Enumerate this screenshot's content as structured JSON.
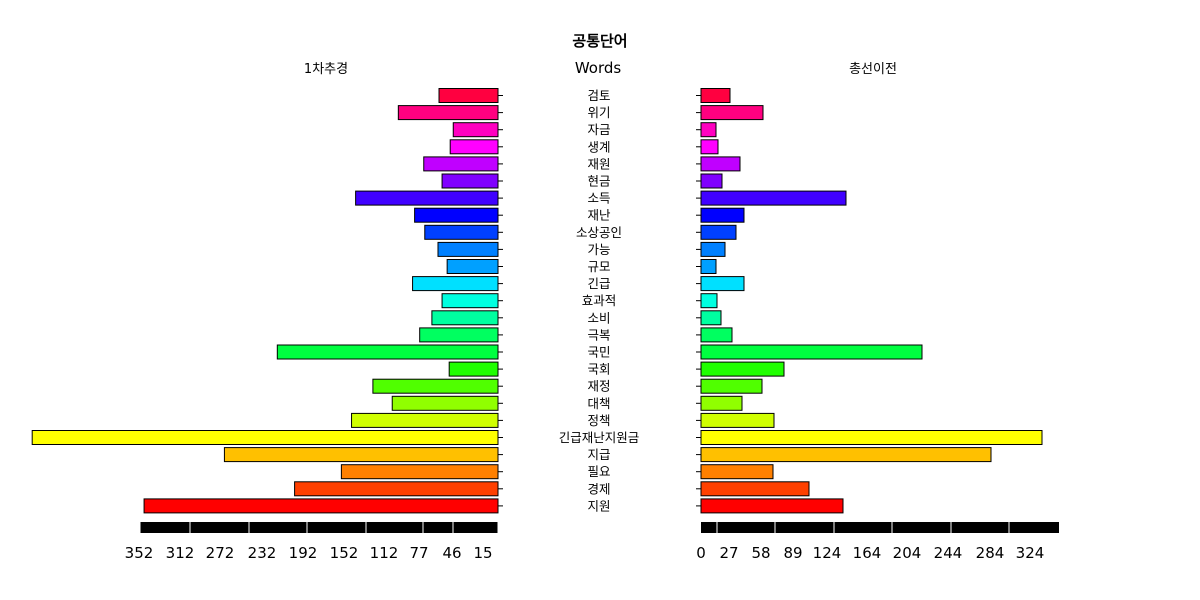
{
  "chart_data": {
    "type": "bar",
    "title": "공통단어",
    "left_title": "1차추경",
    "right_title": "총선이전",
    "center_title": "Words",
    "categories": [
      "검토",
      "위기",
      "자금",
      "생계",
      "재원",
      "현금",
      "소득",
      "재난",
      "소상공인",
      "가능",
      "규모",
      "긴급",
      "효과적",
      "소비",
      "극복",
      "국민",
      "국회",
      "재정",
      "대책",
      "정책",
      "긴급재난지원금",
      "지급",
      "필요",
      "경제",
      "지원"
    ],
    "colors": [
      "#FF0040",
      "#FF0080",
      "#FF00C0",
      "#FF00FF",
      "#C000FF",
      "#8000FF",
      "#4000FF",
      "#0000FF",
      "#0040FF",
      "#0080FF",
      "#00A0FF",
      "#00E0FF",
      "#00FFE0",
      "#00FFA0",
      "#00FF60",
      "#00FF40",
      "#20FF00",
      "#50FF00",
      "#90FF00",
      "#D0FF00",
      "#FFFF00",
      "#FFC000",
      "#FF8000",
      "#FF4000",
      "#FF0000"
    ],
    "series": [
      {
        "name": "1차추경",
        "values": [
          58,
          98,
          44,
          47,
          73,
          55,
          140,
          82,
          72,
          59,
          50,
          84,
          55,
          65,
          77,
          217,
          48,
          123,
          104,
          144,
          458,
          269,
          154,
          200,
          348
        ]
      },
      {
        "name": "총선이전",
        "values": [
          29,
          62,
          15,
          17,
          39,
          21,
          145,
          43,
          35,
          24,
          15,
          43,
          16,
          20,
          31,
          221,
          83,
          61,
          41,
          73,
          341,
          290,
          72,
          108,
          142
        ]
      }
    ],
    "left_axis_ticks": [
      352,
      312,
      272,
      232,
      192,
      152,
      112,
      77,
      46,
      15
    ],
    "right_axis_ticks": [
      0,
      27,
      58,
      89,
      124,
      164,
      204,
      244,
      284,
      324
    ]
  }
}
